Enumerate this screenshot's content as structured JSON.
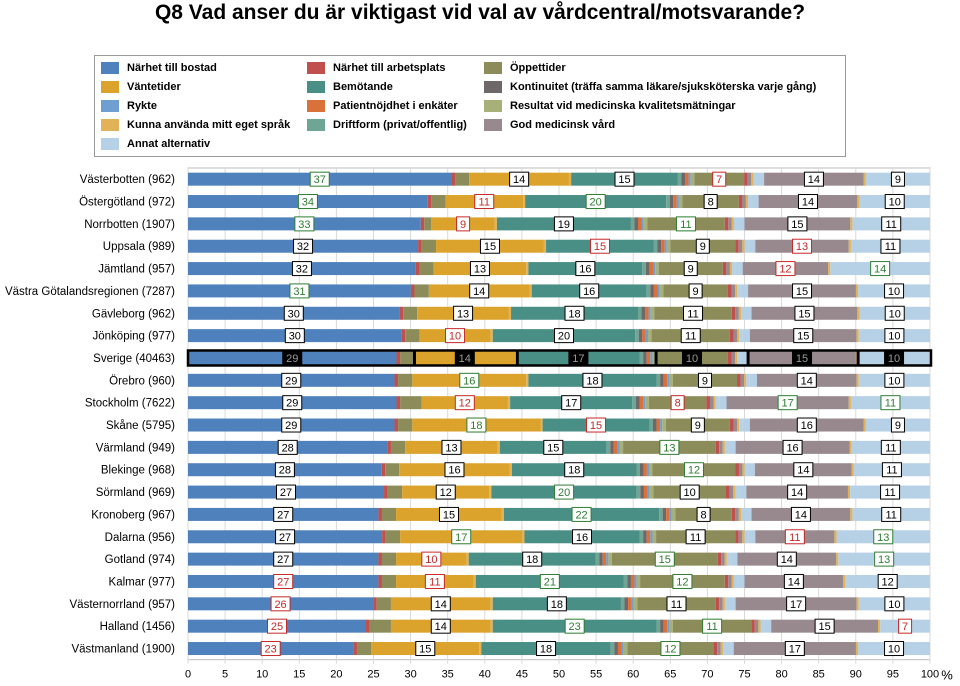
{
  "chart_data": {
    "type": "bar",
    "stacked": true,
    "orientation": "horizontal",
    "title": "Q8 Vad anser du är viktigast vid val av vårdcentral/motsvarande?",
    "xlabel": "%",
    "xlim": [
      0,
      100
    ],
    "xticks": [
      0,
      5,
      10,
      15,
      20,
      25,
      30,
      35,
      40,
      45,
      50,
      55,
      60,
      65,
      70,
      75,
      80,
      85,
      90,
      95,
      100
    ],
    "grid": true,
    "legend_position": "top",
    "series": [
      {
        "name": "Närhet till bostad",
        "color": "#4f81bd"
      },
      {
        "name": "Närhet till arbetsplats",
        "color": "#c0504d"
      },
      {
        "name": "Öppettider",
        "color": "#8c8c5a"
      },
      {
        "name": "Väntetider",
        "color": "#dca32c"
      },
      {
        "name": "Bemötande",
        "color": "#4a8f86"
      },
      {
        "name": "Kontinuitet (träffa samma läkare/sjuksköterska varje gång)",
        "color": "#6e6868"
      },
      {
        "name": "Rykte",
        "color": "#6f9fd0"
      },
      {
        "name": "Patientnöjdhet i enkäter",
        "color": "#d8713a"
      },
      {
        "name": "Resultat vid medicinska kvalitetsmätningar",
        "color": "#a8b07a"
      },
      {
        "name": "Kunna använda mitt eget språk",
        "color": "#e1b258"
      },
      {
        "name": "Driftform (privat/offentlig)",
        "color": "#6fa595"
      },
      {
        "name": "God medicinsk vård",
        "color": "#98898e"
      },
      {
        "name": "Annat alternativ",
        "color": "#b6d0e6"
      }
    ],
    "categories": [
      "Västerbotten (962)",
      "Östergötland (972)",
      "Norrbotten (1907)",
      "Uppsala (989)",
      "Jämtland (957)",
      "Västra Götalandsregionen (7287)",
      "Gävleborg (962)",
      "Jönköping (977)",
      "Sverige (40463)",
      "Örebro (960)",
      "Stockholm (7622)",
      "Skåne (5795)",
      "Värmland (949)",
      "Blekinge (968)",
      "Sörmland (969)",
      "Kronoberg (967)",
      "Dalarna (956)",
      "Gotland (974)",
      "Kalmar (977)",
      "Västernorrland (957)",
      "Halland (1456)",
      "Västmanland (1900)"
    ],
    "values": [
      [
        37,
        0.5,
        2,
        14,
        0.3,
        15,
        0.5,
        0.5,
        0.5,
        0.3,
        0.5,
        7,
        0.5,
        0.5,
        0.3,
        0.5,
        1,
        14,
        0.3,
        9
      ],
      [
        34,
        0.5,
        2,
        11,
        0.3,
        20,
        0.5,
        0.5,
        0.5,
        0.3,
        0.5,
        8,
        0.5,
        0.5,
        0.3,
        0.5,
        1,
        14,
        0.3,
        10
      ],
      [
        33,
        0.5,
        1,
        9,
        0.3,
        19,
        0.5,
        0.5,
        0.5,
        0.3,
        0.5,
        11,
        0.5,
        0.5,
        0.3,
        0.5,
        1,
        15,
        0.3,
        11
      ],
      [
        32,
        0.5,
        2,
        15,
        0.3,
        15,
        0.5,
        0.5,
        0.5,
        0.3,
        0.5,
        9,
        0.5,
        0.5,
        0.3,
        0.5,
        1,
        13,
        0.3,
        11
      ],
      [
        32,
        0.5,
        2,
        13,
        0.3,
        16,
        0.5,
        0.5,
        0.5,
        0.3,
        0.5,
        9,
        0.5,
        0.5,
        0.3,
        0.5,
        1,
        12,
        0.3,
        14
      ],
      [
        31,
        0.5,
        2,
        14,
        0.3,
        16,
        0.5,
        0.5,
        0.5,
        0.3,
        0.5,
        9,
        0.5,
        0.5,
        0.3,
        0.5,
        1,
        15,
        0.3,
        10
      ],
      [
        30,
        0.5,
        2,
        13,
        0.3,
        18,
        0.5,
        0.5,
        0.5,
        0.3,
        0.5,
        11,
        0.5,
        0.5,
        0.3,
        0.5,
        1,
        15,
        0.3,
        10
      ],
      [
        30,
        0.5,
        2,
        10,
        0.3,
        20,
        0.5,
        0.5,
        0.5,
        0.3,
        0.5,
        11,
        0.5,
        0.5,
        0.3,
        0.5,
        1,
        15,
        0.3,
        10
      ],
      [
        29,
        0.5,
        2,
        14,
        0.3,
        17,
        0.5,
        0.5,
        0.5,
        0.3,
        0.5,
        10,
        0.5,
        0.5,
        0.3,
        0.5,
        1,
        15,
        0.3,
        10
      ],
      [
        29,
        0.5,
        2,
        16,
        0.3,
        18,
        0.5,
        0.5,
        0.5,
        0.3,
        0.5,
        9,
        0.5,
        0.5,
        0.3,
        0.5,
        1,
        14,
        0.3,
        10
      ],
      [
        29,
        0.5,
        3,
        12,
        0.3,
        17,
        0.5,
        0.5,
        0.5,
        0.3,
        0.5,
        8,
        0.5,
        0.5,
        0.3,
        0.5,
        1,
        17,
        0.3,
        11
      ],
      [
        29,
        0.5,
        2,
        18,
        0.3,
        15,
        0.5,
        0.5,
        0.5,
        0.3,
        0.5,
        9,
        0.5,
        0.5,
        0.3,
        0.5,
        1,
        16,
        0.3,
        9
      ],
      [
        28,
        0.5,
        2,
        13,
        0.3,
        15,
        0.5,
        0.5,
        0.5,
        0.3,
        0.5,
        13,
        0.5,
        0.5,
        0.3,
        0.5,
        1,
        16,
        0.3,
        11
      ],
      [
        28,
        0.5,
        2,
        16,
        0.3,
        18,
        0.5,
        0.5,
        0.5,
        0.3,
        0.5,
        12,
        0.5,
        0.5,
        0.3,
        0.5,
        1,
        14,
        0.3,
        11
      ],
      [
        27,
        0.5,
        2,
        12,
        0.3,
        20,
        0.5,
        0.5,
        0.5,
        0.3,
        0.5,
        10,
        0.5,
        0.5,
        0.3,
        0.5,
        1,
        14,
        0.3,
        11
      ],
      [
        27,
        0.5,
        2,
        15,
        0.3,
        22,
        0.5,
        0.5,
        0.5,
        0.3,
        0.5,
        8,
        0.5,
        0.5,
        0.3,
        0.5,
        1,
        14,
        0.3,
        11
      ],
      [
        27,
        0.5,
        2,
        17,
        0.3,
        16,
        0.5,
        0.5,
        0.5,
        0.3,
        0.5,
        11,
        0.5,
        0.5,
        0.3,
        0.5,
        1,
        11,
        0.3,
        13
      ],
      [
        27,
        0.5,
        2,
        10,
        0.3,
        18,
        0.5,
        0.5,
        0.5,
        0.3,
        0.5,
        15,
        0.5,
        0.5,
        0.3,
        0.5,
        1,
        14,
        0.3,
        13
      ],
      [
        27,
        0.5,
        2,
        11,
        0.3,
        21,
        0.5,
        0.5,
        0.5,
        0.3,
        0.5,
        12,
        0.5,
        0.5,
        0.3,
        0.5,
        1,
        14,
        0.3,
        12
      ],
      [
        26,
        0.5,
        2,
        14,
        0.3,
        18,
        0.5,
        0.5,
        0.5,
        0.3,
        0.5,
        11,
        0.5,
        0.5,
        0.3,
        0.5,
        1,
        17,
        0.3,
        10
      ],
      [
        25,
        0.5,
        3,
        14,
        0.3,
        23,
        0.5,
        0.5,
        0.5,
        0.3,
        0.5,
        11,
        0.5,
        0.5,
        0.3,
        0.5,
        1,
        15,
        0.3,
        7
      ],
      [
        23,
        0.5,
        2,
        15,
        0.3,
        18,
        0.5,
        0.5,
        0.5,
        0.3,
        0.5,
        12,
        0.5,
        0.5,
        0.3,
        0.5,
        1,
        17,
        0.3,
        10
      ]
    ],
    "segment_series": [
      0,
      1,
      2,
      3,
      9,
      4,
      10,
      5,
      7,
      6,
      8,
      2,
      1,
      11,
      9,
      12,
      12,
      11,
      9,
      12
    ],
    "segment_series_note": "order of series along each bar; small slivers approximate",
    "labels": [
      {
        "row": 0,
        "items": [
          [
            0,
            "37",
            "g"
          ],
          [
            3,
            "14",
            "k"
          ],
          [
            5,
            "15",
            "k"
          ],
          [
            11,
            "7",
            "r"
          ],
          [
            17,
            "14",
            "k"
          ],
          [
            19,
            "9",
            "k"
          ]
        ]
      },
      {
        "row": 1,
        "items": [
          [
            0,
            "34",
            "g"
          ],
          [
            3,
            "11",
            "r"
          ],
          [
            5,
            "20",
            "g"
          ],
          [
            11,
            "8",
            "k"
          ],
          [
            17,
            "14",
            "k"
          ],
          [
            19,
            "10",
            "k"
          ]
        ]
      },
      {
        "row": 2,
        "items": [
          [
            0,
            "33",
            "g"
          ],
          [
            3,
            "9",
            "r"
          ],
          [
            5,
            "19",
            "k"
          ],
          [
            11,
            "11",
            "g"
          ],
          [
            17,
            "15",
            "k"
          ],
          [
            19,
            "11",
            "k"
          ]
        ]
      },
      {
        "row": 3,
        "items": [
          [
            0,
            "32",
            "k"
          ],
          [
            3,
            "15",
            "k"
          ],
          [
            5,
            "15",
            "r"
          ],
          [
            11,
            "9",
            "k"
          ],
          [
            17,
            "13",
            "r"
          ],
          [
            19,
            "11",
            "k"
          ]
        ]
      },
      {
        "row": 4,
        "items": [
          [
            0,
            "32",
            "k"
          ],
          [
            3,
            "13",
            "k"
          ],
          [
            5,
            "16",
            "k"
          ],
          [
            11,
            "9",
            "k"
          ],
          [
            17,
            "12",
            "r"
          ],
          [
            19,
            "14",
            "g"
          ]
        ]
      },
      {
        "row": 5,
        "items": [
          [
            0,
            "31",
            "g"
          ],
          [
            3,
            "14",
            "k"
          ],
          [
            5,
            "16",
            "k"
          ],
          [
            11,
            "9",
            "k"
          ],
          [
            17,
            "15",
            "k"
          ],
          [
            19,
            "10",
            "k"
          ]
        ]
      },
      {
        "row": 6,
        "items": [
          [
            0,
            "30",
            "k"
          ],
          [
            3,
            "13",
            "k"
          ],
          [
            5,
            "18",
            "k"
          ],
          [
            11,
            "11",
            "k"
          ],
          [
            17,
            "15",
            "k"
          ],
          [
            19,
            "10",
            "k"
          ]
        ]
      },
      {
        "row": 7,
        "items": [
          [
            0,
            "30",
            "k"
          ],
          [
            3,
            "10",
            "r"
          ],
          [
            5,
            "20",
            "k"
          ],
          [
            11,
            "11",
            "k"
          ],
          [
            17,
            "15",
            "k"
          ],
          [
            19,
            "10",
            "k"
          ]
        ]
      },
      {
        "row": 8,
        "items": [
          [
            0,
            "29",
            "w"
          ],
          [
            3,
            "14",
            "w"
          ],
          [
            5,
            "17",
            "w"
          ],
          [
            11,
            "10",
            "w"
          ],
          [
            17,
            "15",
            "w"
          ],
          [
            19,
            "10",
            "w"
          ]
        ]
      },
      {
        "row": 9,
        "items": [
          [
            0,
            "29",
            "k"
          ],
          [
            3,
            "16",
            "g"
          ],
          [
            5,
            "18",
            "k"
          ],
          [
            11,
            "9",
            "k"
          ],
          [
            17,
            "14",
            "k"
          ],
          [
            19,
            "10",
            "k"
          ]
        ]
      },
      {
        "row": 10,
        "items": [
          [
            0,
            "29",
            "k"
          ],
          [
            3,
            "12",
            "r"
          ],
          [
            5,
            "17",
            "k"
          ],
          [
            11,
            "8",
            "r"
          ],
          [
            17,
            "17",
            "g"
          ],
          [
            19,
            "11",
            "g"
          ]
        ]
      },
      {
        "row": 11,
        "items": [
          [
            0,
            "29",
            "k"
          ],
          [
            3,
            "18",
            "g"
          ],
          [
            5,
            "15",
            "r"
          ],
          [
            11,
            "9",
            "k"
          ],
          [
            17,
            "16",
            "k"
          ],
          [
            19,
            "9",
            "k"
          ]
        ]
      },
      {
        "row": 12,
        "items": [
          [
            0,
            "28",
            "k"
          ],
          [
            3,
            "13",
            "k"
          ],
          [
            5,
            "15",
            "k"
          ],
          [
            11,
            "13",
            "g"
          ],
          [
            17,
            "16",
            "k"
          ],
          [
            19,
            "11",
            "k"
          ]
        ]
      },
      {
        "row": 13,
        "items": [
          [
            0,
            "28",
            "k"
          ],
          [
            3,
            "16",
            "k"
          ],
          [
            5,
            "18",
            "k"
          ],
          [
            11,
            "12",
            "g"
          ],
          [
            17,
            "14",
            "k"
          ],
          [
            19,
            "11",
            "k"
          ]
        ]
      },
      {
        "row": 14,
        "items": [
          [
            0,
            "27",
            "k"
          ],
          [
            3,
            "12",
            "k"
          ],
          [
            5,
            "20",
            "g"
          ],
          [
            11,
            "10",
            "k"
          ],
          [
            17,
            "14",
            "k"
          ],
          [
            19,
            "11",
            "k"
          ]
        ]
      },
      {
        "row": 15,
        "items": [
          [
            0,
            "27",
            "k"
          ],
          [
            3,
            "15",
            "k"
          ],
          [
            5,
            "22",
            "g"
          ],
          [
            11,
            "8",
            "k"
          ],
          [
            17,
            "14",
            "k"
          ],
          [
            19,
            "11",
            "k"
          ]
        ]
      },
      {
        "row": 16,
        "items": [
          [
            0,
            "27",
            "k"
          ],
          [
            3,
            "17",
            "g"
          ],
          [
            5,
            "16",
            "k"
          ],
          [
            11,
            "11",
            "k"
          ],
          [
            17,
            "11",
            "r"
          ],
          [
            19,
            "13",
            "g"
          ]
        ]
      },
      {
        "row": 17,
        "items": [
          [
            0,
            "27",
            "k"
          ],
          [
            3,
            "10",
            "r"
          ],
          [
            5,
            "18",
            "k"
          ],
          [
            11,
            "15",
            "g"
          ],
          [
            17,
            "14",
            "k"
          ],
          [
            19,
            "13",
            "g"
          ]
        ]
      },
      {
        "row": 18,
        "items": [
          [
            0,
            "27",
            "r"
          ],
          [
            3,
            "11",
            "r"
          ],
          [
            5,
            "21",
            "g"
          ],
          [
            11,
            "12",
            "g"
          ],
          [
            17,
            "14",
            "k"
          ],
          [
            19,
            "12",
            "k"
          ]
        ]
      },
      {
        "row": 19,
        "items": [
          [
            0,
            "26",
            "r"
          ],
          [
            3,
            "14",
            "k"
          ],
          [
            5,
            "18",
            "k"
          ],
          [
            11,
            "11",
            "k"
          ],
          [
            17,
            "17",
            "k"
          ],
          [
            19,
            "10",
            "k"
          ]
        ]
      },
      {
        "row": 20,
        "items": [
          [
            0,
            "25",
            "r"
          ],
          [
            3,
            "14",
            "k"
          ],
          [
            5,
            "23",
            "g"
          ],
          [
            11,
            "11",
            "g"
          ],
          [
            17,
            "15",
            "k"
          ],
          [
            19,
            "7",
            "r"
          ]
        ]
      },
      {
        "row": 21,
        "items": [
          [
            0,
            "23",
            "r"
          ],
          [
            3,
            "15",
            "k"
          ],
          [
            5,
            "18",
            "k"
          ],
          [
            11,
            "12",
            "g"
          ],
          [
            17,
            "17",
            "k"
          ],
          [
            19,
            "10",
            "k"
          ]
        ]
      }
    ],
    "highlight_row": 8,
    "label_colors": {
      "k": "#000000",
      "g": "#2e7d32",
      "r": "#c62828",
      "w": "#9a9a9a"
    }
  }
}
